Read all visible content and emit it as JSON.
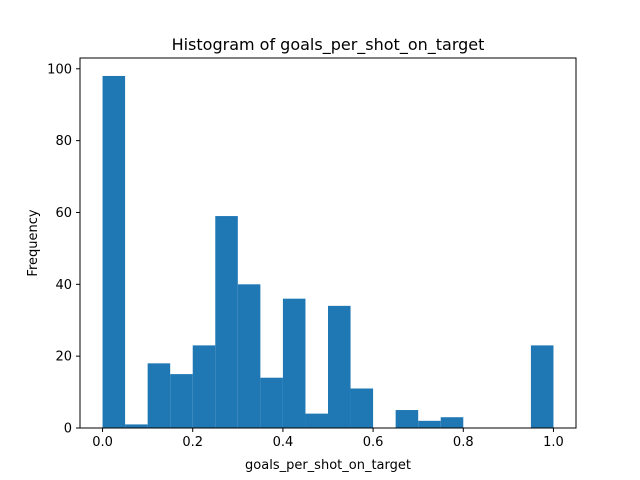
{
  "chart_data": {
    "type": "bar",
    "title": "Histogram of goals_per_shot_on_target",
    "xlabel": "goals_per_shot_on_target",
    "ylabel": "Frequency",
    "bin_edges": [
      0.0,
      0.05,
      0.1,
      0.15,
      0.2,
      0.25,
      0.3,
      0.35,
      0.4,
      0.45,
      0.5,
      0.55,
      0.6,
      0.65,
      0.7,
      0.75,
      0.8,
      0.85,
      0.9,
      0.95,
      1.0
    ],
    "values": [
      98,
      1,
      18,
      15,
      23,
      59,
      40,
      14,
      36,
      4,
      34,
      11,
      0,
      5,
      2,
      3,
      0,
      0,
      0,
      23
    ],
    "xlim": [
      -0.05,
      1.05
    ],
    "ylim": [
      0,
      103
    ],
    "xticks": [
      0.0,
      0.2,
      0.4,
      0.6,
      0.8,
      1.0
    ],
    "xtick_labels": [
      "0.0",
      "0.2",
      "0.4",
      "0.6",
      "0.8",
      "1.0"
    ],
    "yticks": [
      0,
      20,
      40,
      60,
      80,
      100
    ],
    "ytick_labels": [
      "0",
      "20",
      "40",
      "60",
      "80",
      "100"
    ],
    "bar_color": "#1f77b4",
    "grid": false,
    "legend": "none"
  }
}
